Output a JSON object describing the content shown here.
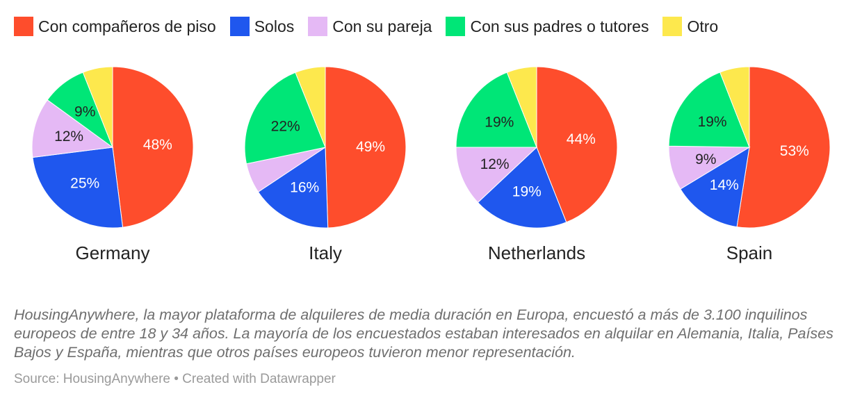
{
  "legend": [
    {
      "label": "Con compañeros de piso",
      "color": "#fe4d2c"
    },
    {
      "label": "Solos",
      "color": "#1f57ee"
    },
    {
      "label": "Con su pareja",
      "color": "#e5b9f5"
    },
    {
      "label": "Con sus padres o tutores",
      "color": "#00e677"
    },
    {
      "label": "Otro",
      "color": "#fde84d"
    }
  ],
  "chart_data": {
    "type": "pie",
    "categories": [
      "Con compañeros de piso",
      "Solos",
      "Con su pareja",
      "Con sus padres o tutores",
      "Otro"
    ],
    "colors": [
      "#fe4d2c",
      "#1f57ee",
      "#e5b9f5",
      "#00e677",
      "#fde84d"
    ],
    "label_colors": [
      "#ffffff",
      "#ffffff",
      "#222222",
      "#222222",
      "#222222"
    ],
    "pies": [
      {
        "title": "Germany",
        "values": [
          48,
          25,
          12,
          9,
          6
        ],
        "labels": [
          "48%",
          "25%",
          "12%",
          "9%",
          ""
        ]
      },
      {
        "title": "Italy",
        "values": [
          49,
          16,
          6,
          22,
          6
        ],
        "labels": [
          "49%",
          "16%",
          "",
          "22%",
          ""
        ]
      },
      {
        "title": "Netherlands",
        "values": [
          44,
          19,
          12,
          19,
          6
        ],
        "labels": [
          "44%",
          "19%",
          "12%",
          "19%",
          ""
        ]
      },
      {
        "title": "Spain",
        "values": [
          53,
          14,
          9,
          19,
          6
        ],
        "labels": [
          "53%",
          "14%",
          "9%",
          "19%",
          ""
        ]
      }
    ]
  },
  "caption": "HousingAnywhere, la mayor plataforma de alquileres de media duración en Europa, encuestó a más de 3.100 inquilinos europeos de entre 18 y 34 años. La mayoría de los encuestados estaban interesados en alquilar en Alemania, Italia, Países Bajos y España, mientras que otros países europeos tuvieron menor representación.",
  "source": "Source: HousingAnywhere • Created with Datawrapper"
}
